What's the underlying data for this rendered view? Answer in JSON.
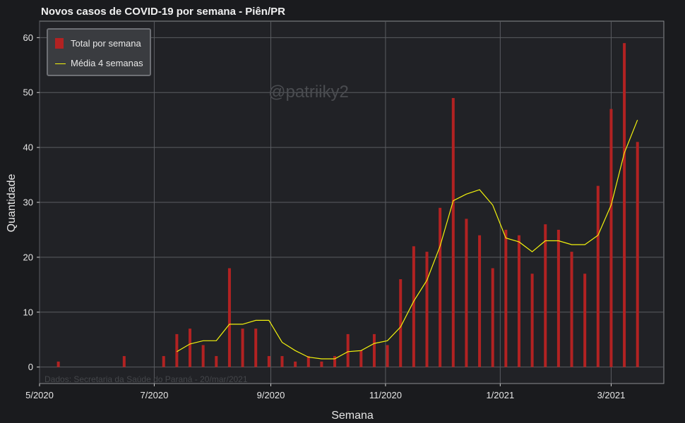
{
  "chart_data": {
    "type": "bar",
    "title": "Novos casos de COVID-19 por semana - Piên/PR",
    "xlabel": "Semana",
    "ylabel": "Quantidade",
    "ylim": [
      -3,
      63
    ],
    "yticks": [
      0,
      10,
      20,
      30,
      40,
      50,
      60
    ],
    "xticks": [
      {
        "label": "5/2020",
        "date": "2020-05-01"
      },
      {
        "label": "7/2020",
        "date": "2020-07-01"
      },
      {
        "label": "9/2020",
        "date": "2020-09-01"
      },
      {
        "label": "11/2020",
        "date": "2020-11-01"
      },
      {
        "label": "1/2021",
        "date": "2021-01-01"
      },
      {
        "label": "3/2021",
        "date": "2021-03-01"
      }
    ],
    "xlim": [
      "2020-05-01",
      "2021-03-29"
    ],
    "grid": true,
    "legend_position": "top-left",
    "colors": {
      "bars": "#b22222",
      "line": "#f2f20d",
      "background": "#212226",
      "grid": "#5a5c61"
    },
    "series": [
      {
        "name": "Total por semana",
        "type": "bar",
        "x": [
          "2020-05-11",
          "2020-06-15",
          "2020-07-06",
          "2020-07-13",
          "2020-07-20",
          "2020-07-27",
          "2020-08-03",
          "2020-08-10",
          "2020-08-17",
          "2020-08-24",
          "2020-08-31",
          "2020-09-07",
          "2020-09-14",
          "2020-09-21",
          "2020-09-28",
          "2020-10-05",
          "2020-10-12",
          "2020-10-19",
          "2020-10-26",
          "2020-11-02",
          "2020-11-09",
          "2020-11-16",
          "2020-11-23",
          "2020-11-30",
          "2020-12-07",
          "2020-12-14",
          "2020-12-21",
          "2020-12-28",
          "2021-01-04",
          "2021-01-11",
          "2021-01-18",
          "2021-01-25",
          "2021-02-01",
          "2021-02-08",
          "2021-02-15",
          "2021-02-22",
          "2021-03-01",
          "2021-03-08",
          "2021-03-15"
        ],
        "values": [
          1,
          2,
          2,
          6,
          7,
          4,
          2,
          18,
          7,
          7,
          2,
          2,
          1,
          2,
          1,
          2,
          6,
          3,
          6,
          4,
          16,
          22,
          21,
          29,
          49,
          27,
          24,
          18,
          25,
          24,
          17,
          26,
          25,
          21,
          17,
          33,
          47,
          59,
          41
        ]
      },
      {
        "name": "Média 4 semanas",
        "type": "line",
        "x": [
          "2020-07-13",
          "2020-07-20",
          "2020-07-27",
          "2020-08-03",
          "2020-08-10",
          "2020-08-17",
          "2020-08-24",
          "2020-08-31",
          "2020-09-07",
          "2020-09-14",
          "2020-09-21",
          "2020-09-28",
          "2020-10-05",
          "2020-10-12",
          "2020-10-19",
          "2020-10-26",
          "2020-11-02",
          "2020-11-09",
          "2020-11-16",
          "2020-11-23",
          "2020-11-30",
          "2020-12-07",
          "2020-12-14",
          "2020-12-21",
          "2020-12-28",
          "2021-01-04",
          "2021-01-11",
          "2021-01-18",
          "2021-01-25",
          "2021-02-01",
          "2021-02-08",
          "2021-02-15",
          "2021-02-22",
          "2021-03-01",
          "2021-03-08",
          "2021-03-15"
        ],
        "values": [
          2.8,
          4.2,
          4.8,
          4.8,
          7.8,
          7.8,
          8.5,
          8.5,
          4.5,
          3.0,
          1.8,
          1.5,
          1.5,
          2.8,
          3.0,
          4.3,
          4.8,
          7.3,
          12.0,
          15.8,
          22.0,
          30.3,
          31.5,
          32.3,
          29.5,
          23.5,
          22.8,
          21.0,
          23.0,
          23.0,
          22.3,
          22.3,
          24.0,
          29.5,
          39.0,
          45.0
        ]
      }
    ],
    "annotations": {
      "watermark": "@patriiky2",
      "source": "Dados: Secretaria da Saúde do Paraná - 20/mar/2021"
    }
  }
}
